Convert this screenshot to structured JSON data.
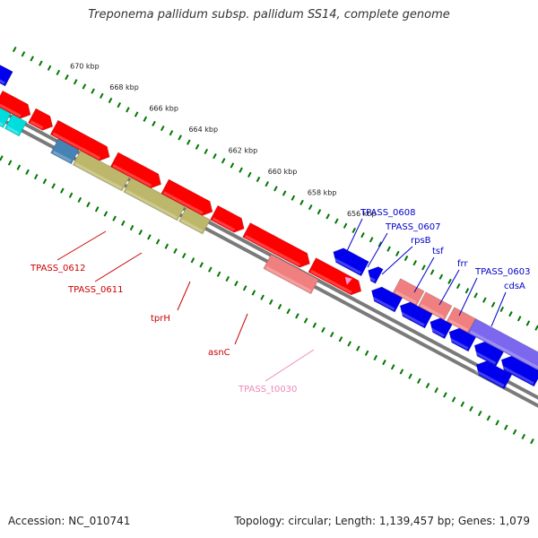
{
  "title": "Treponema pallidum subsp. pallidum SS14, complete genome",
  "footer": {
    "accession": "Accession: NC_010741",
    "summary": "Topology: circular; Length: 1,139,457 bp; Genes: 1,079"
  },
  "colors": {
    "forward_cds": "#ff0000",
    "reverse_cds": "#0000ee",
    "pseudo_forward": "#f08080",
    "rna": "#ff99cc",
    "olive_feature": "#bdb76b",
    "cyan_feature": "#00dddd",
    "slate_feature": "#4682b4",
    "purple_feature": "#7b68ee",
    "green_feature": "#6b8e23",
    "label_forward": "#cc0000",
    "label_reverse": "#0000cc",
    "label_rna": "#ee88bb",
    "tick": "#007700"
  },
  "ruler": {
    "unit": "kbp",
    "labels": [
      {
        "kbp": 670,
        "text": "670 kbp"
      },
      {
        "kbp": 668,
        "text": "668 kbp"
      },
      {
        "kbp": 666,
        "text": "666 kbp"
      },
      {
        "kbp": 664,
        "text": "664 kbp"
      },
      {
        "kbp": 662,
        "text": "662 kbp"
      },
      {
        "kbp": 660,
        "text": "660 kbp"
      },
      {
        "kbp": 658,
        "text": "658 kbp"
      },
      {
        "kbp": 656,
        "text": "656 kbp"
      }
    ]
  },
  "gene_labels": [
    {
      "text": "TPASS_0612",
      "strand": "forward"
    },
    {
      "text": "TPASS_0611",
      "strand": "forward"
    },
    {
      "text": "tprH",
      "strand": "forward"
    },
    {
      "text": "asnC",
      "strand": "forward"
    },
    {
      "text": "TPASS_t0030",
      "strand": "rna"
    },
    {
      "text": "TPASS_0608",
      "strand": "reverse"
    },
    {
      "text": "TPASS_0607",
      "strand": "reverse"
    },
    {
      "text": "rpsB",
      "strand": "reverse"
    },
    {
      "text": "tsf",
      "strand": "reverse"
    },
    {
      "text": "frr",
      "strand": "reverse"
    },
    {
      "text": "TPASS_0603",
      "strand": "reverse"
    },
    {
      "text": "cdsA",
      "strand": "reverse"
    }
  ]
}
